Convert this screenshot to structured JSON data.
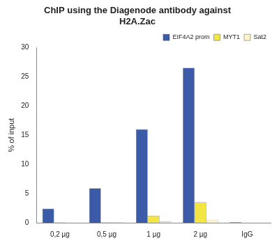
{
  "chart_data": {
    "type": "bar",
    "title": [
      "ChIP using the Diagenode antibody against",
      "H2A.Zac"
    ],
    "y_label": "% of input",
    "categories": [
      "0,2 µg",
      "0,5 µg",
      "1 µg",
      "2 µg",
      "IgG"
    ],
    "series": [
      {
        "name": "EIF4A2 prom",
        "color": "#3b5ba8",
        "values": [
          2.4,
          5.9,
          16.0,
          26.5,
          0.1
        ]
      },
      {
        "name": "MYT1",
        "color": "#f2e544",
        "values": [
          0.05,
          0.1,
          1.2,
          3.5,
          0
        ]
      },
      {
        "name": "Sat2",
        "color": "#fdf5c9",
        "values": [
          0,
          0.05,
          0.2,
          0.5,
          0
        ]
      }
    ],
    "ylim": [
      0,
      30
    ],
    "yticks": [
      0,
      5,
      10,
      15,
      20,
      25,
      30
    ],
    "grid": false,
    "legend": "top-right"
  }
}
